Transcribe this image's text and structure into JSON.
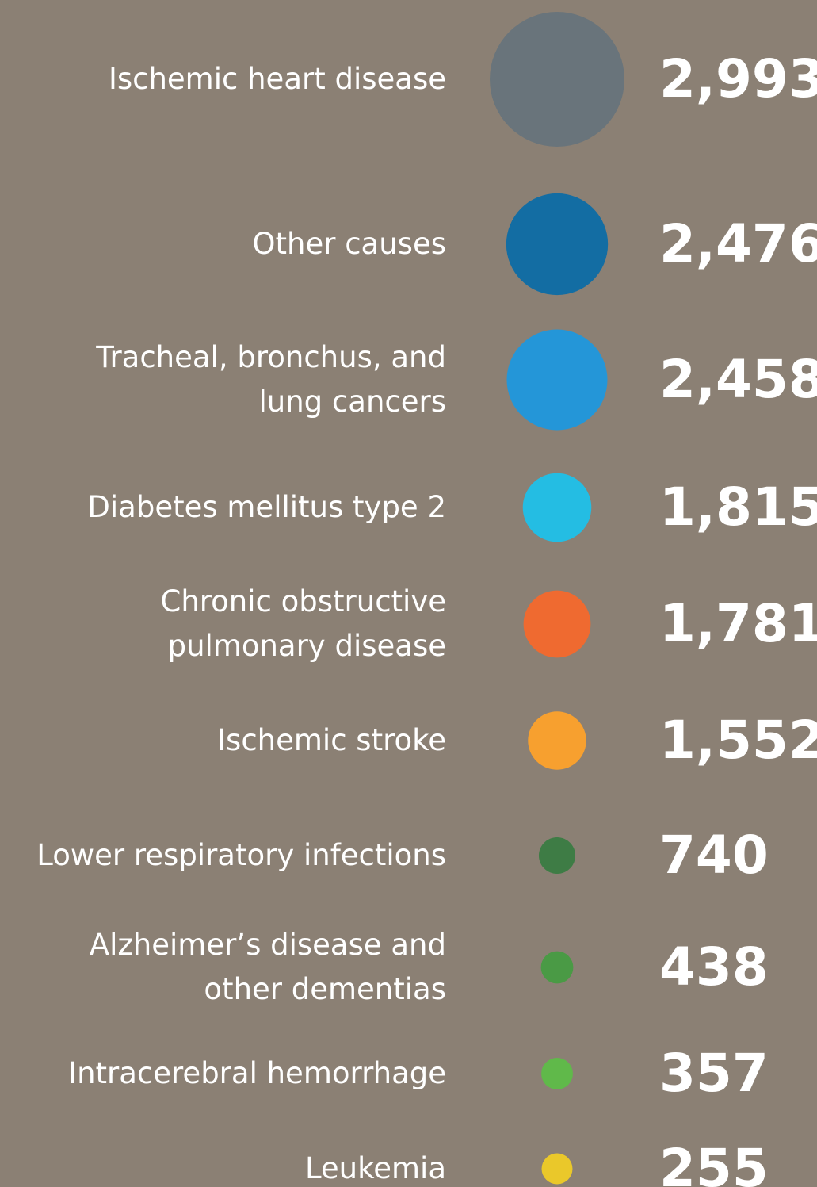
{
  "chart_data": {
    "type": "bubble",
    "categories": [
      "Ischemic heart disease",
      "Other causes",
      "Tracheal, bronchus, and\nlung cancers",
      "Diabetes mellitus type 2",
      "Chronic obstructive\npulmonary disease",
      "Ischemic stroke",
      "Lower respiratory infections",
      "Alzheimer’s disease and\nother dementias",
      "Intracerebral hemorrhage",
      "Leukemia"
    ],
    "values": [
      2993,
      2476,
      2458,
      1815,
      1781,
      1552,
      740,
      438,
      357,
      255
    ],
    "value_labels": [
      "2,993",
      "2,476",
      "2,458",
      "1,815",
      "1,781",
      "1,552",
      "740",
      "438",
      "357",
      "255"
    ],
    "colors": [
      "#69747b",
      "#136da3",
      "#2496d8",
      "#24bde3",
      "#ef6a30",
      "#f7a02f",
      "#3e7c45",
      "#4a9a45",
      "#60b94a",
      "#eac82a"
    ]
  }
}
